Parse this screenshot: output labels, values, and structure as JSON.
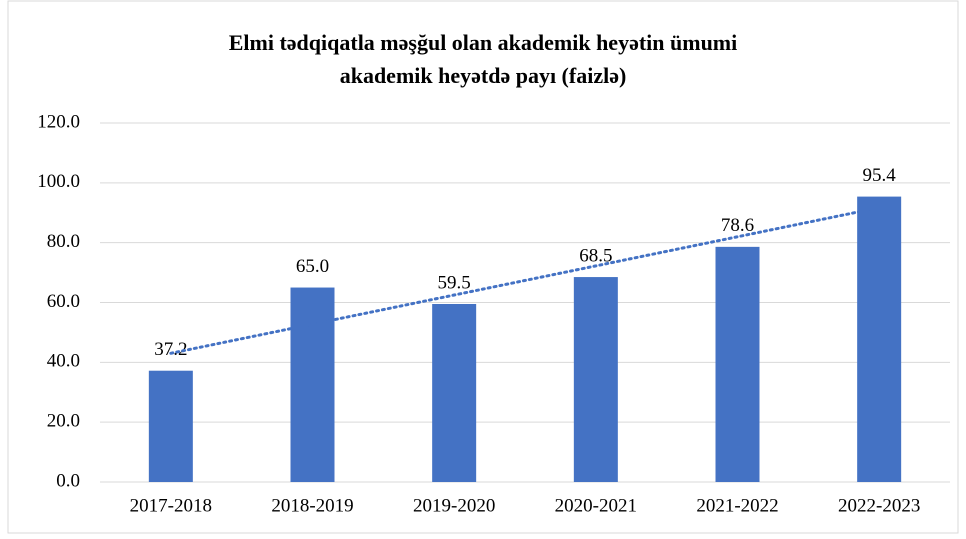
{
  "chart_data": {
    "type": "bar",
    "title": [
      "Elmi tədqiqatla məşğul olan akademik heyətin ümumi",
      "akademik heyətdə payı (faizlə)"
    ],
    "categories": [
      "2017-2018",
      "2018-2019",
      "2019-2020",
      "2020-2021",
      "2021-2022",
      "2022-2023"
    ],
    "values": [
      37.2,
      65.0,
      59.5,
      68.5,
      78.6,
      95.4
    ],
    "value_labels": [
      "37.2",
      "65.0",
      "59.5",
      "68.5",
      "78.6",
      "95.4"
    ],
    "color": "#4472c4",
    "trendline": "linear",
    "trendline_color": "#4472c4",
    "ylim": [
      0,
      120
    ],
    "yticks": [
      {
        "value": 0,
        "label": "0.0"
      },
      {
        "value": 20,
        "label": "20.0"
      },
      {
        "value": 40,
        "label": "40.0"
      },
      {
        "value": 60,
        "label": "60.0"
      },
      {
        "value": 80,
        "label": "80.0"
      },
      {
        "value": 100,
        "label": "100.0"
      },
      {
        "value": 120,
        "label": "120.0"
      }
    ],
    "grid": true
  }
}
